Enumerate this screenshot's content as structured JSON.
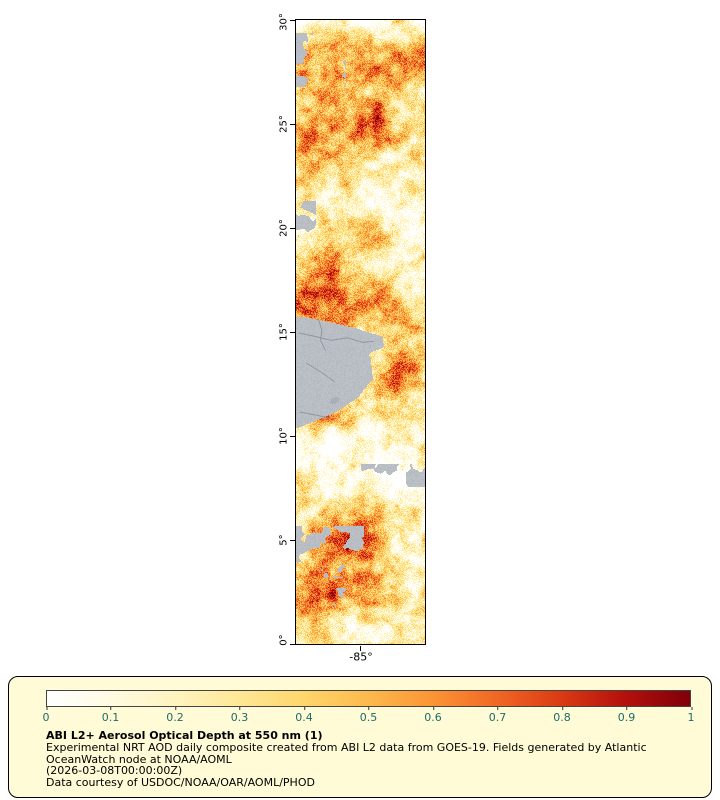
{
  "map": {
    "x_axis_label": "-85°",
    "y_ticks": [
      "30°",
      "25°",
      "20°",
      "15°",
      "10°",
      "5°",
      "0°"
    ],
    "colors": {
      "no_data_gray": "#b9bdc4",
      "border_line": "#80868f",
      "lake_fill": "#a9afb8",
      "frame": "#000000"
    }
  },
  "legend": {
    "background": "#fffbd6",
    "tick_color": "#1d6b6b",
    "colorbar_stops": [
      "#ffffff",
      "#fffbe2",
      "#fff3bf",
      "#ffe795",
      "#fed66b",
      "#fdb94d",
      "#fb9435",
      "#f06724",
      "#da3a14",
      "#b3100c",
      "#7f000a"
    ],
    "tick_labels": [
      "0",
      "0.1",
      "0.2",
      "0.3",
      "0.4",
      "0.5",
      "0.6",
      "0.7",
      "0.8",
      "0.9",
      "1"
    ],
    "title": "ABI L2+ Aerosol Optical Depth at 550 nm (1)",
    "description_line1": "Experimental NRT AOD daily composite created from ABI L2 data from GOES-19. Fields generated by Atlantic",
    "description_line2": "OceanWatch node at NOAA/AOML",
    "timestamp": "(2026-03-08T00:00:00Z)",
    "credit": "Data courtesy of USDOC/NOAA/OAR/AOML/PHOD"
  }
}
